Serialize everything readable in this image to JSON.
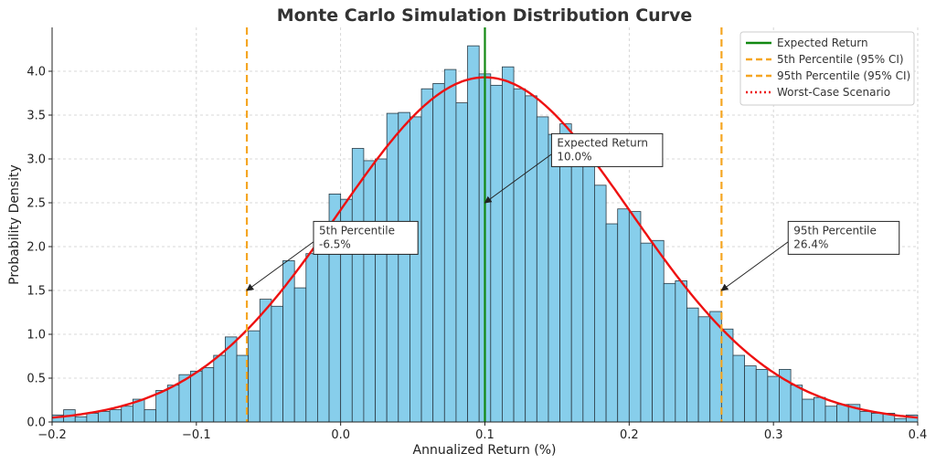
{
  "chart_data": {
    "type": "bar",
    "title": "Monte Carlo Simulation Distribution Curve",
    "xlabel": "Annualized Return (%)",
    "ylabel": "Probability Density",
    "xlim": [
      -0.2,
      0.4
    ],
    "ylim": [
      0,
      4.5
    ],
    "grid": true,
    "legend_position": "top-right",
    "x_ticks": [
      "−0.2",
      "−0.1",
      "0.0",
      "0.1",
      "0.2",
      "0.3",
      "0.4"
    ],
    "x_tick_values": [
      -0.2,
      -0.1,
      0.0,
      0.1,
      0.2,
      0.3,
      0.4
    ],
    "y_ticks": [
      "0.0",
      "0.5",
      "1.0",
      "1.5",
      "2.0",
      "2.5",
      "3.0",
      "3.5",
      "4.0"
    ],
    "y_tick_values": [
      0,
      0.5,
      1.0,
      1.5,
      2.0,
      2.5,
      3.0,
      3.5,
      4.0
    ],
    "histogram": {
      "bin_start": -0.2,
      "bin_width": 0.008,
      "values": [
        0.08,
        0.14,
        0.06,
        0.1,
        0.12,
        0.14,
        0.18,
        0.26,
        0.14,
        0.36,
        0.42,
        0.54,
        0.58,
        0.62,
        0.76,
        0.97,
        0.76,
        1.04,
        1.4,
        1.32,
        1.84,
        1.53,
        1.92,
        2.1,
        2.6,
        2.54,
        3.12,
        2.98,
        3.0,
        3.52,
        3.53,
        3.48,
        3.8,
        3.86,
        4.02,
        3.64,
        4.29,
        3.97,
        3.84,
        4.05,
        3.8,
        3.72,
        3.48,
        3.28,
        3.4,
        3.1,
        2.92,
        2.7,
        2.26,
        2.43,
        2.4,
        2.04,
        2.07,
        1.58,
        1.61,
        1.3,
        1.2,
        1.26,
        1.06,
        0.76,
        0.64,
        0.6,
        0.52,
        0.6,
        0.42,
        0.26,
        0.28,
        0.18,
        0.2,
        0.2,
        0.12,
        0.1,
        0.1,
        0.04,
        0.08
      ],
      "color": "#87CEEB",
      "edge_color": "#2b3a44"
    },
    "curve": {
      "type": "normal_pdf",
      "mean": 0.1,
      "std": 0.1015,
      "color": "#ee1111"
    },
    "vlines": [
      {
        "x": 0.1,
        "color": "#118811",
        "style": "solid"
      },
      {
        "x": -0.065,
        "color": "#f5a623",
        "style": "dashed"
      },
      {
        "x": 0.264,
        "color": "#f5a623",
        "style": "dashed"
      }
    ],
    "legend": [
      {
        "label": "Expected Return",
        "color": "#118811",
        "style": "solid"
      },
      {
        "label": "5th Percentile (95% CI)",
        "color": "#f5a623",
        "style": "dashed"
      },
      {
        "label": "95th Percentile (95% CI)",
        "color": "#f5a623",
        "style": "dashed"
      },
      {
        "label": "Worst-Case Scenario",
        "color": "#ee1111",
        "style": "dotted"
      }
    ],
    "annotations": [
      {
        "line1": "Expected Return",
        "line2": "10.0%",
        "point_x": 0.1,
        "point_y": 2.5,
        "text_x": 0.15,
        "text_y": 3.1
      },
      {
        "line1": "5th Percentile",
        "line2": "-6.5%",
        "point_x": -0.065,
        "point_y": 1.5,
        "text_x": -0.015,
        "text_y": 2.1
      },
      {
        "line1": "95th Percentile",
        "line2": "26.4%",
        "point_x": 0.264,
        "point_y": 1.5,
        "text_x": 0.314,
        "text_y": 2.1
      }
    ]
  }
}
